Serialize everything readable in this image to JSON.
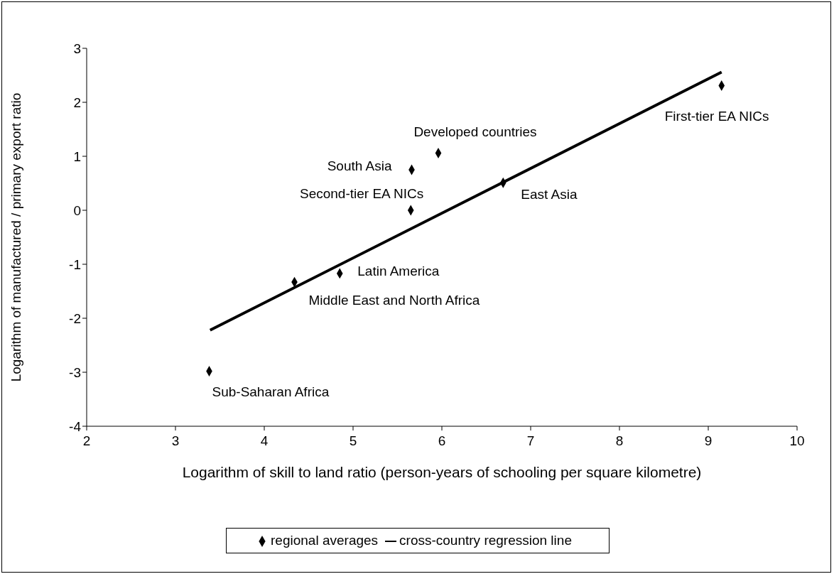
{
  "chart_data": {
    "type": "scatter",
    "xlabel": "Logarithm of skill to land ratio (person-years of schooling per square kilometre)",
    "ylabel": "Logarithm of manufactured / primary export ratio",
    "xlim": [
      2,
      10
    ],
    "xticks": [
      2,
      3,
      4,
      5,
      6,
      7,
      8,
      9,
      10
    ],
    "ylim": [
      -4,
      3
    ],
    "yticks": [
      -4,
      -3,
      -2,
      -1,
      0,
      1,
      2,
      3
    ],
    "grid": false,
    "legend": "bottom",
    "series": [
      {
        "name": "regional averages",
        "type": "scatter",
        "marker": "diamond",
        "color": "#000000",
        "x": [
          3.38,
          4.34,
          4.85,
          5.65,
          5.66,
          5.96,
          6.69,
          9.15
        ],
        "values": [
          -2.98,
          -1.33,
          -1.17,
          0.0,
          0.75,
          1.06,
          0.51,
          2.31
        ]
      },
      {
        "name": "cross-country regression line",
        "type": "line",
        "marker": "none",
        "line_style": "solid",
        "color": "#000000",
        "x": [
          3.39,
          9.15
        ],
        "values": [
          -2.22,
          2.56
        ]
      }
    ],
    "annotations": [
      {
        "text": "Sub-Saharan Africa",
        "x": 3.38,
        "y": -2.98
      },
      {
        "text": "Middle East and North Africa",
        "x": 4.34,
        "y": -1.33
      },
      {
        "text": "Latin America",
        "x": 4.85,
        "y": -1.17
      },
      {
        "text": "Second-tier EA NICs",
        "x": 5.65,
        "y": 0.0
      },
      {
        "text": "South Asia",
        "x": 5.66,
        "y": 0.75
      },
      {
        "text": "Developed countries",
        "x": 5.96,
        "y": 1.06
      },
      {
        "text": "East Asia",
        "x": 6.69,
        "y": 0.51
      },
      {
        "text": "First-tier EA NICs",
        "x": 9.15,
        "y": 2.31
      }
    ]
  }
}
